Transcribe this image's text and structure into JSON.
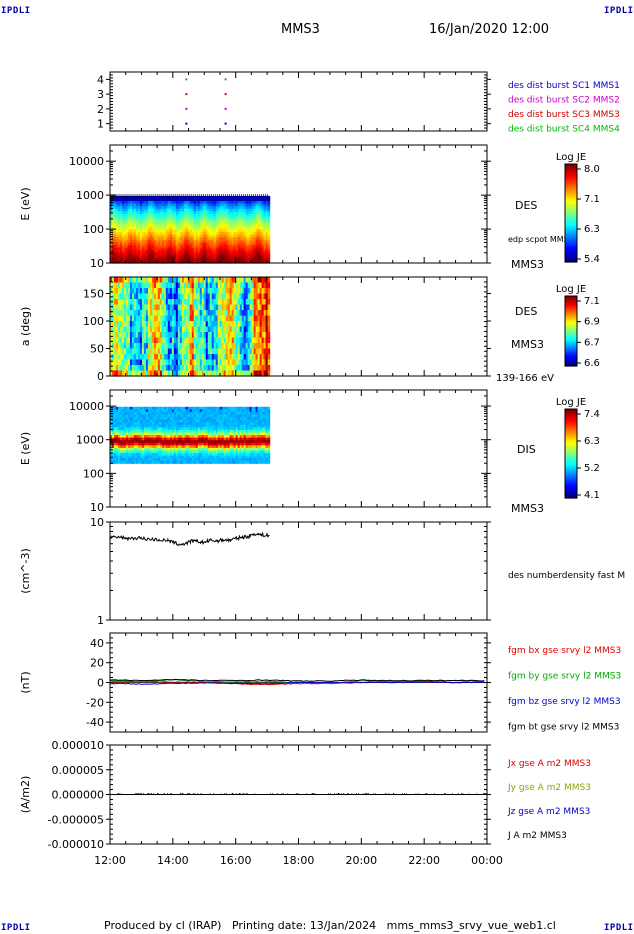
{
  "header": {
    "left_logo": "IPDLI",
    "right_logo": "IPDLI",
    "mission": "MMS3",
    "datetime": "16/Jan/2020 12:00"
  },
  "footer": {
    "produced_by": "Produced by cl (IRAP)",
    "printing_date": "Printing date: 13/Jan/2024",
    "filename": "mms_mms3_srvy_vue_web1.cl",
    "bottom_left_logo": "IPDLI",
    "bottom_right_logo": "IPDLI"
  },
  "time_axis": {
    "ticks": [
      "12:00",
      "14:00",
      "16:00",
      "18:00",
      "20:00",
      "22:00",
      "00:00"
    ],
    "start_hour": 12,
    "end_hour": 24
  },
  "chart_data": [
    {
      "type": "scatter",
      "name": "burst-availability",
      "ylim": [
        0.5,
        4.5
      ],
      "yticks": [
        "1",
        "2",
        "3",
        "4"
      ],
      "legend": [
        {
          "label": "des dist burst SC1 MMS1",
          "color": "#0000cc"
        },
        {
          "label": "des dist burst SC2 MMS2",
          "color": "#cc00cc"
        },
        {
          "label": "des dist burst SC3 MMS3",
          "color": "#cc0000"
        },
        {
          "label": "des dist burst SC4 MMS4",
          "color": "#00bb00"
        }
      ],
      "points": [
        {
          "x": 14.43,
          "sc": 1
        },
        {
          "x": 15.68,
          "sc": 1
        },
        {
          "x": 14.43,
          "sc": 2
        },
        {
          "x": 15.68,
          "sc": 2
        },
        {
          "x": 14.43,
          "sc": 3
        },
        {
          "x": 15.68,
          "sc": 3
        },
        {
          "x": 14.43,
          "sc": 4
        },
        {
          "x": 15.68,
          "sc": 4
        }
      ]
    },
    {
      "type": "heatmap",
      "name": "des-energy-spectrogram",
      "ylabel": "E (eV)",
      "yscale": "log",
      "ylim": [
        10,
        30000
      ],
      "yticks": [
        "10",
        "100",
        "1000",
        "10000"
      ],
      "data_range_hours": [
        12.0,
        17.08
      ],
      "data_ylim": [
        10,
        950
      ],
      "instrument": "DES",
      "spacecraft": "MMS3",
      "overlay_label": "edp scpot MMS3",
      "colorbar": {
        "label": "Log JE",
        "ticks": [
          "8.0",
          "7.1",
          "6.3",
          "5.4"
        ]
      },
      "profile": "energy_electron"
    },
    {
      "type": "heatmap",
      "name": "des-pitch-angle",
      "ylabel": "a (deg)",
      "ylim": [
        0,
        180
      ],
      "yticks": [
        "0",
        "50",
        "100",
        "150"
      ],
      "data_range_hours": [
        12.0,
        17.08
      ],
      "instrument": "DES",
      "spacecraft": "MMS3",
      "energy_range": "139-166 eV",
      "colorbar": {
        "label": "Log JE",
        "ticks": [
          "7.1",
          "6.9",
          "6.7",
          "6.6"
        ]
      },
      "profile": "pitch"
    },
    {
      "type": "heatmap",
      "name": "dis-energy-spectrogram",
      "ylabel": "E (eV)",
      "yscale": "log",
      "ylim": [
        10,
        30000
      ],
      "yticks": [
        "10",
        "100",
        "1000",
        "10000"
      ],
      "data_range_hours": [
        12.0,
        17.08
      ],
      "data_ylim": [
        200,
        9500
      ],
      "instrument": "DIS",
      "spacecraft": "MMS3",
      "colorbar": {
        "label": "Log JE",
        "ticks": [
          "7.4",
          "6.3",
          "5.2",
          "4.1"
        ]
      },
      "profile": "energy_ion"
    },
    {
      "type": "line",
      "name": "des-density",
      "ylabel": "(cm^-3)",
      "yscale": "log",
      "ylim": [
        1,
        10
      ],
      "yticks": [
        "1",
        "10"
      ],
      "legend": [
        {
          "label": "des numberdensity fast M",
          "color": "#000000"
        }
      ],
      "series": [
        {
          "name": "des numberdensity fast M",
          "color": "#000000",
          "x": [
            12.0,
            12.3,
            12.6,
            12.9,
            13.2,
            13.5,
            13.8,
            14.0,
            14.2,
            14.4,
            14.6,
            14.8,
            15.0,
            15.2,
            15.4,
            15.6,
            15.8,
            16.0,
            16.2,
            16.4,
            16.6,
            16.8,
            17.08
          ],
          "y": [
            6.9,
            7.0,
            6.8,
            6.9,
            6.7,
            6.6,
            6.5,
            6.2,
            5.9,
            6.0,
            6.4,
            6.3,
            6.2,
            6.5,
            6.4,
            6.6,
            6.5,
            6.8,
            7.0,
            7.1,
            7.6,
            7.4,
            7.3
          ]
        }
      ]
    },
    {
      "type": "line",
      "name": "fgm-magnetic-field",
      "ylabel": "(nT)",
      "ylim": [
        -50,
        50
      ],
      "yticks": [
        "-40",
        "-20",
        "0",
        "20",
        "40"
      ],
      "legend": [
        {
          "label": "fgm bx gse srvy l2 MMS3",
          "color": "#dd0000"
        },
        {
          "label": "fgm by gse srvy l2 MMS3",
          "color": "#00aa00"
        },
        {
          "label": "fgm bz gse srvy l2 MMS3",
          "color": "#0000cc"
        },
        {
          "label": "fgm bt gse srvy l2 MMS3",
          "color": "#000000"
        }
      ],
      "series": [
        {
          "name": "fgm bx gse srvy l2 MMS3",
          "color": "#dd0000",
          "x": [
            12,
            13,
            14,
            15,
            16,
            16.5,
            17,
            18,
            19,
            20,
            21,
            22,
            23,
            24
          ],
          "y": [
            0.5,
            1,
            0.5,
            0,
            -1,
            -2,
            -2,
            -1,
            -1,
            0,
            1,
            0.5,
            0,
            0.5
          ]
        },
        {
          "name": "fgm by gse srvy l2 MMS3",
          "color": "#00aa00",
          "x": [
            12,
            13,
            14,
            15,
            16,
            17,
            18,
            19,
            20,
            21,
            22,
            23,
            24
          ],
          "y": [
            2,
            1,
            3,
            1,
            0.5,
            1,
            0,
            -1,
            2,
            1,
            1.5,
            2,
            1
          ]
        },
        {
          "name": "fgm bz gse srvy l2 MMS3",
          "color": "#0000cc",
          "x": [
            12,
            13,
            14,
            15,
            16,
            17,
            18,
            19,
            20,
            21,
            22,
            23,
            24
          ],
          "y": [
            -1,
            -1.5,
            -1,
            -0.5,
            -1,
            -1,
            0,
            0,
            0,
            0,
            0.5,
            0,
            0
          ]
        },
        {
          "name": "fgm bt gse srvy l2 MMS3",
          "color": "#000000",
          "x": [
            12,
            13,
            14,
            15,
            16,
            17,
            18,
            19,
            20,
            21,
            22,
            23,
            24
          ],
          "y": [
            2.5,
            2,
            3,
            2,
            2,
            2.5,
            1.5,
            1.5,
            2.5,
            2,
            2,
            2,
            2
          ]
        }
      ]
    },
    {
      "type": "line",
      "name": "current-density",
      "ylabel": "(A/m2)",
      "ylim": [
        -1e-05,
        1e-05
      ],
      "yticks": [
        "-0.000010",
        "-0.000005",
        "0.000000",
        "0.000005",
        "0.000010"
      ],
      "legend": [
        {
          "label": "Jx gse A m2 MMS3",
          "color": "#dd0000"
        },
        {
          "label": "Jy gse A m2 MMS3",
          "color": "#88aa00"
        },
        {
          "label": "Jz gse A m2 MMS3",
          "color": "#0000cc"
        },
        {
          "label": "J A m2 MMS3",
          "color": "#000000"
        }
      ],
      "series": [
        {
          "name": "J A m2 MMS3",
          "color": "#000000",
          "x": [
            12,
            24
          ],
          "y": [
            0,
            0
          ]
        }
      ]
    }
  ]
}
